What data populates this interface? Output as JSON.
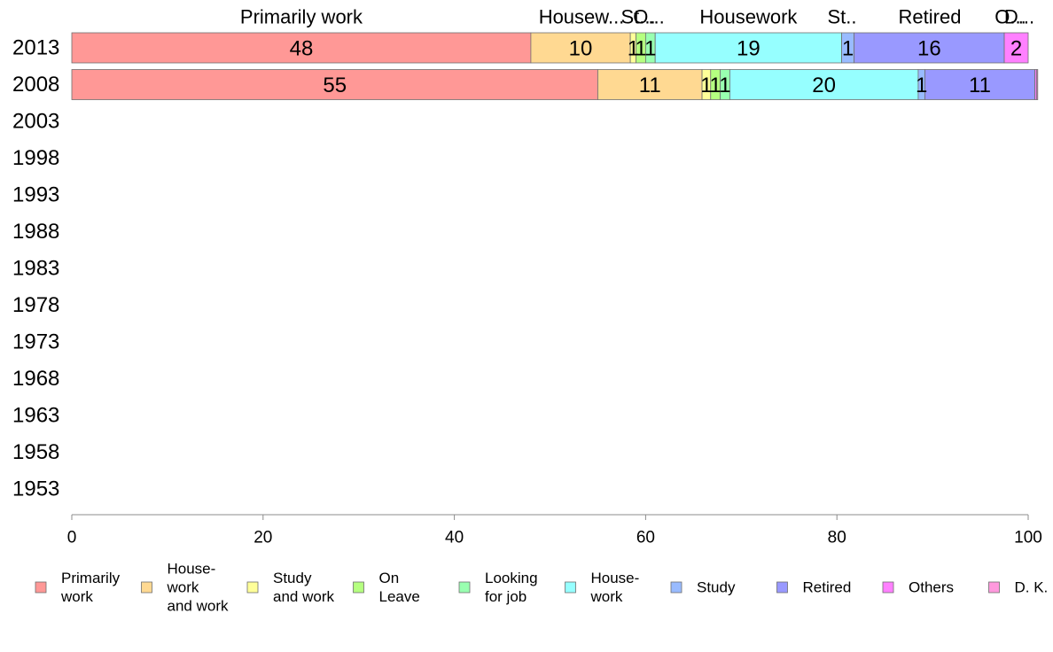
{
  "chart_data": {
    "type": "bar",
    "orientation": "horizontal",
    "stacked": true,
    "categories": [
      "2013",
      "2008",
      "2003",
      "1998",
      "1993",
      "1988",
      "1983",
      "1978",
      "1973",
      "1968",
      "1963",
      "1958",
      "1953"
    ],
    "x_ticks": [
      "0",
      "20",
      "40",
      "60",
      "80",
      "100"
    ],
    "xlim": [
      0,
      100
    ],
    "grid": false,
    "legend_position": "bottom",
    "series": [
      {
        "name": "Primarily work",
        "legend_lines": [
          "Primarily",
          "work"
        ],
        "color": "#ff9896",
        "values": [
          48,
          55,
          null,
          null,
          null,
          null,
          null,
          null,
          null,
          null,
          null,
          null,
          null
        ]
      },
      {
        "name": "House-work and work",
        "legend_lines": [
          "House-",
          "work",
          "and work"
        ],
        "color": "#ffd992",
        "values": [
          10.4,
          10.9,
          null,
          null,
          null,
          null,
          null,
          null,
          null,
          null,
          null,
          null,
          null
        ]
      },
      {
        "name": "Study and work",
        "legend_lines": [
          "Study",
          "and work"
        ],
        "color": "#ffff99",
        "values": [
          0.6,
          0.9,
          null,
          null,
          null,
          null,
          null,
          null,
          null,
          null,
          null,
          null,
          null
        ]
      },
      {
        "name": "On Leave",
        "legend_lines": [
          "On",
          "Leave"
        ],
        "color": "#b5ff80",
        "values": [
          1.0,
          1.0,
          null,
          null,
          null,
          null,
          null,
          null,
          null,
          null,
          null,
          null,
          null
        ]
      },
      {
        "name": "Looking for job",
        "legend_lines": [
          "Looking",
          "for job"
        ],
        "color": "#99ffb0",
        "values": [
          1.0,
          1.0,
          null,
          null,
          null,
          null,
          null,
          null,
          null,
          null,
          null,
          null,
          null
        ]
      },
      {
        "name": "House-work",
        "legend_lines": [
          "House-",
          "work"
        ],
        "color": "#96ffff",
        "values": [
          19.5,
          19.7,
          null,
          null,
          null,
          null,
          null,
          null,
          null,
          null,
          null,
          null,
          null
        ]
      },
      {
        "name": "Study",
        "legend_lines": [
          "Study"
        ],
        "color": "#99bbff",
        "values": [
          1.3,
          0.7,
          null,
          null,
          null,
          null,
          null,
          null,
          null,
          null,
          null,
          null,
          null
        ]
      },
      {
        "name": "Retired",
        "legend_lines": [
          "Retired"
        ],
        "color": "#9999ff",
        "values": [
          15.7,
          11.5,
          null,
          null,
          null,
          null,
          null,
          null,
          null,
          null,
          null,
          null,
          null
        ]
      },
      {
        "name": "Others",
        "legend_lines": [
          "Others"
        ],
        "color": "#ff80ff",
        "values": [
          2.5,
          0.2,
          null,
          null,
          null,
          null,
          null,
          null,
          null,
          null,
          null,
          null,
          null
        ]
      },
      {
        "name": "D. K.",
        "legend_lines": [
          "D. K."
        ],
        "color": "#ff99dd",
        "values": [
          0,
          0.1,
          null,
          null,
          null,
          null,
          null,
          null,
          null,
          null,
          null,
          null,
          null
        ]
      }
    ],
    "bar_labels": [
      [
        "48",
        "10",
        "1",
        "1",
        "1",
        "19",
        "1",
        "16",
        "2",
        ""
      ],
      [
        "55",
        "11",
        "1",
        "1",
        "1",
        "20",
        "1",
        "11",
        "",
        ""
      ]
    ],
    "top_labels": [
      "Primarily work",
      "Housew...",
      "St...",
      "O...",
      "Housework",
      "St..",
      "Retired",
      "O...",
      "D..."
    ]
  }
}
